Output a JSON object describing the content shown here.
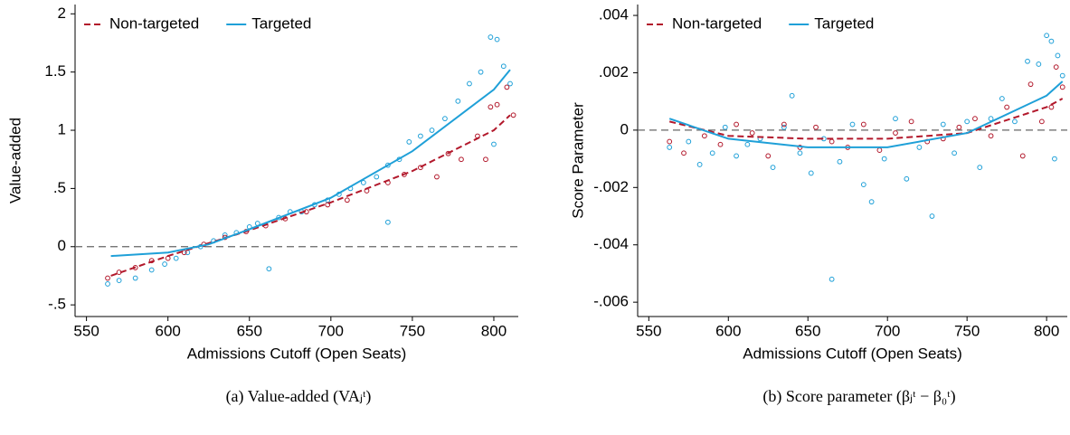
{
  "chart_data": [
    {
      "type": "scatter",
      "caption": "(a)  Value-added (VAⱼᵗ)",
      "xlabel": "Admissions Cutoff (Open Seats)",
      "ylabel": "Value-added",
      "xlim": [
        543,
        815
      ],
      "xticks": [
        550,
        600,
        650,
        700,
        750,
        800
      ],
      "ylim": [
        -0.6,
        2.08
      ],
      "yticks": [
        {
          "value": -0.5,
          "label": "-.5"
        },
        0,
        {
          "value": 0.5,
          "label": ".5"
        },
        1,
        1.5,
        2
      ],
      "reference_line": 0,
      "legend": "top-left",
      "series": [
        {
          "color": "#1fa0d8",
          "mode": "markers",
          "x": [
            563,
            570,
            580,
            590,
            598,
            605,
            612,
            620,
            628,
            635,
            642,
            650,
            655,
            662,
            668,
            675,
            682,
            690,
            698,
            705,
            712,
            720,
            728,
            735,
            742,
            748,
            755,
            762,
            770,
            778,
            785,
            792,
            798,
            802,
            806,
            810,
            800,
            735
          ],
          "values": [
            -0.32,
            -0.29,
            -0.27,
            -0.2,
            -0.15,
            -0.1,
            -0.05,
            0.0,
            0.05,
            0.1,
            0.12,
            0.17,
            0.2,
            -0.19,
            0.25,
            0.3,
            0.3,
            0.36,
            0.4,
            0.45,
            0.5,
            0.55,
            0.6,
            0.7,
            0.75,
            0.9,
            0.95,
            1.0,
            1.1,
            1.25,
            1.4,
            1.5,
            1.8,
            1.78,
            1.55,
            1.4,
            0.88,
            0.21
          ]
        },
        {
          "color": "#b2182b",
          "mode": "markers",
          "x": [
            563,
            570,
            580,
            590,
            600,
            610,
            622,
            635,
            648,
            660,
            672,
            685,
            698,
            710,
            722,
            735,
            745,
            755,
            765,
            772,
            780,
            790,
            798,
            802,
            808,
            812,
            795
          ],
          "values": [
            -0.27,
            -0.22,
            -0.18,
            -0.12,
            -0.1,
            -0.05,
            0.02,
            0.08,
            0.13,
            0.18,
            0.24,
            0.3,
            0.36,
            0.4,
            0.48,
            0.55,
            0.62,
            0.68,
            0.6,
            0.8,
            0.75,
            0.95,
            1.2,
            1.22,
            1.37,
            1.13,
            0.75
          ]
        },
        {
          "name": "Non-targeted",
          "color": "#b2182b",
          "mode": "line",
          "dash": true,
          "x": [
            565,
            600,
            650,
            700,
            750,
            800,
            810
          ],
          "values": [
            -0.25,
            -0.08,
            0.14,
            0.38,
            0.65,
            1.0,
            1.13
          ]
        },
        {
          "name": "Targeted",
          "color": "#1fa0d8",
          "mode": "line",
          "dash": false,
          "x": [
            565,
            600,
            625,
            650,
            700,
            750,
            800,
            810
          ],
          "values": [
            -0.08,
            -0.05,
            0.02,
            0.15,
            0.42,
            0.82,
            1.35,
            1.52
          ]
        }
      ]
    },
    {
      "type": "scatter",
      "caption": "(b)  Score parameter (βⱼᵗ − β₀ᵗ)",
      "xlabel": "Admissions Cutoff (Open Seats)",
      "ylabel": "Score Parameter",
      "xlim": [
        543,
        813
      ],
      "xticks": [
        550,
        600,
        650,
        700,
        750,
        800
      ],
      "ylim": [
        -0.0065,
        0.00438
      ],
      "yticks": [
        {
          "value": -0.006,
          "label": "-.006"
        },
        {
          "value": -0.004,
          "label": "-.004"
        },
        {
          "value": -0.002,
          "label": "-.002"
        },
        0,
        {
          "value": 0.002,
          "label": ".002"
        },
        {
          "value": 0.004,
          "label": ".004"
        }
      ],
      "reference_line": 0,
      "legend": "top-left",
      "series": [
        {
          "color": "#1fa0d8",
          "mode": "markers",
          "x": [
            563,
            575,
            582,
            590,
            598,
            605,
            612,
            620,
            628,
            635,
            640,
            645,
            652,
            660,
            665,
            670,
            678,
            685,
            690,
            698,
            705,
            712,
            720,
            728,
            735,
            742,
            750,
            758,
            765,
            772,
            780,
            788,
            795,
            800,
            803,
            807,
            810,
            805
          ],
          "values": [
            -0.0006,
            -0.0004,
            -0.0012,
            -0.0008,
            0.0001,
            -0.0009,
            -0.0005,
            -0.0003,
            -0.0013,
            0.0001,
            0.0012,
            -0.0008,
            -0.0015,
            -0.0003,
            -0.0052,
            -0.0011,
            0.0002,
            -0.0019,
            -0.0025,
            -0.001,
            0.0004,
            -0.0017,
            -0.0006,
            -0.003,
            0.0002,
            -0.0008,
            0.0003,
            -0.0013,
            0.0004,
            0.0011,
            0.0003,
            0.0024,
            0.0023,
            0.0033,
            0.0031,
            0.0026,
            0.0019,
            -0.001
          ]
        },
        {
          "color": "#b2182b",
          "mode": "markers",
          "x": [
            563,
            572,
            585,
            595,
            605,
            615,
            625,
            635,
            645,
            655,
            665,
            675,
            685,
            695,
            705,
            715,
            725,
            735,
            745,
            755,
            765,
            775,
            785,
            790,
            797,
            803,
            806,
            810
          ],
          "values": [
            -0.0004,
            -0.0008,
            -0.0002,
            -0.0005,
            0.0002,
            -0.0001,
            -0.0009,
            0.0002,
            -0.0006,
            0.0001,
            -0.0004,
            -0.0006,
            0.0002,
            -0.0007,
            -0.0001,
            0.0003,
            -0.0004,
            -0.0003,
            0.0001,
            0.0004,
            -0.0002,
            0.0008,
            -0.0009,
            0.0016,
            0.0003,
            0.0008,
            0.0022,
            0.0015
          ]
        },
        {
          "name": "Non-targeted",
          "color": "#b2182b",
          "mode": "line",
          "dash": true,
          "x": [
            563,
            600,
            650,
            700,
            750,
            800,
            810
          ],
          "values": [
            0.0003,
            -0.0002,
            -0.0003,
            -0.0003,
            -0.0001,
            0.0008,
            0.0011
          ]
        },
        {
          "name": "Targeted",
          "color": "#1fa0d8",
          "mode": "line",
          "dash": false,
          "x": [
            563,
            600,
            650,
            700,
            750,
            800,
            810
          ],
          "values": [
            0.0004,
            -0.0003,
            -0.0006,
            -0.0006,
            -0.0001,
            0.0012,
            0.0017
          ]
        }
      ]
    }
  ]
}
